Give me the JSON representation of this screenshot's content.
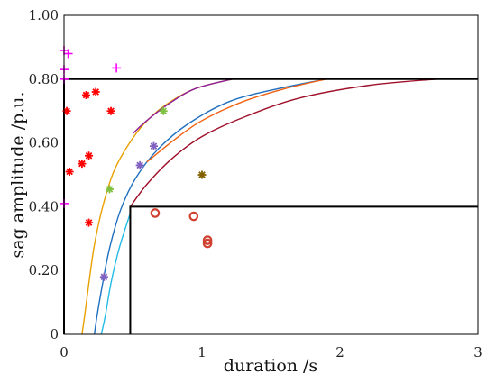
{
  "chart_data": {
    "type": "scatter",
    "title": "",
    "xlabel": "duration /s",
    "ylabel": "sag amplitude /p.u.",
    "xlim": [
      0,
      3
    ],
    "ylim": [
      0,
      1
    ],
    "xticks": [
      "0",
      "1",
      "2",
      "3"
    ],
    "yticks": [
      "0",
      "0.20",
      "0.40",
      "0.60",
      "0.80",
      "1.00"
    ],
    "grid": false,
    "legend": "none",
    "regions": [
      {
        "points": [
          [
            0,
            0.8
          ],
          [
            3,
            0.8
          ]
        ]
      },
      {
        "points": [
          [
            0,
            0
          ],
          [
            0,
            0.8
          ]
        ]
      },
      {
        "points": [
          [
            0.48,
            0
          ],
          [
            0.48,
            0.4
          ],
          [
            3,
            0.4
          ]
        ]
      }
    ],
    "curves": [
      {
        "color": "#e8a000",
        "points": [
          [
            0.13,
            0
          ],
          [
            0.15,
            0.06
          ],
          [
            0.18,
            0.16
          ],
          [
            0.22,
            0.28
          ],
          [
            0.28,
            0.4
          ],
          [
            0.36,
            0.51
          ],
          [
            0.46,
            0.59
          ],
          [
            0.58,
            0.66
          ],
          [
            0.74,
            0.72
          ],
          [
            0.95,
            0.77
          ],
          [
            1.22,
            0.8
          ]
        ]
      },
      {
        "color": "#8e1f9e",
        "points": [
          [
            0.5,
            0.63
          ],
          [
            0.6,
            0.67
          ],
          [
            0.75,
            0.72
          ],
          [
            0.95,
            0.77
          ],
          [
            1.22,
            0.8
          ]
        ]
      },
      {
        "color": "#1f6fbf",
        "points": [
          [
            0.22,
            0
          ],
          [
            0.24,
            0.06
          ],
          [
            0.28,
            0.16
          ],
          [
            0.33,
            0.27
          ],
          [
            0.41,
            0.39
          ],
          [
            0.52,
            0.49
          ],
          [
            0.68,
            0.58
          ],
          [
            0.9,
            0.66
          ],
          [
            1.2,
            0.73
          ],
          [
            1.55,
            0.77
          ],
          [
            1.9,
            0.8
          ]
        ]
      },
      {
        "color": "#f06010",
        "points": [
          [
            0.6,
            0.54
          ],
          [
            0.8,
            0.61
          ],
          [
            1.0,
            0.67
          ],
          [
            1.3,
            0.73
          ],
          [
            1.6,
            0.77
          ],
          [
            1.9,
            0.8
          ]
        ]
      },
      {
        "color": "#22bbe6",
        "points": [
          [
            0.27,
            0
          ],
          [
            0.3,
            0.06
          ],
          [
            0.34,
            0.16
          ],
          [
            0.4,
            0.27
          ],
          [
            0.48,
            0.38
          ]
        ]
      },
      {
        "color": "#a0102a",
        "points": [
          [
            0.48,
            0.4
          ],
          [
            0.6,
            0.47
          ],
          [
            0.78,
            0.55
          ],
          [
            1.0,
            0.62
          ],
          [
            1.3,
            0.68
          ],
          [
            1.7,
            0.74
          ],
          [
            2.2,
            0.78
          ],
          [
            2.7,
            0.8
          ]
        ]
      }
    ],
    "series": [
      {
        "marker": "+",
        "color": "#ff00ff",
        "points": [
          [
            0.0,
            0.89
          ],
          [
            0.03,
            0.88
          ],
          [
            0.0,
            0.83
          ],
          [
            0.38,
            0.835
          ],
          [
            0.0,
            0.8
          ],
          [
            0.0,
            0.41
          ]
        ]
      },
      {
        "marker": "*",
        "color": "#ff0000",
        "points": [
          [
            0.02,
            0.7
          ],
          [
            0.16,
            0.75
          ],
          [
            0.23,
            0.76
          ],
          [
            0.34,
            0.7
          ],
          [
            0.18,
            0.56
          ],
          [
            0.13,
            0.535
          ],
          [
            0.04,
            0.51
          ],
          [
            0.18,
            0.35
          ]
        ]
      },
      {
        "marker": "*",
        "color": "#80c040",
        "points": [
          [
            0.72,
            0.7
          ],
          [
            0.33,
            0.455
          ]
        ]
      },
      {
        "marker": "*",
        "color": "#8060c0",
        "points": [
          [
            0.65,
            0.59
          ],
          [
            0.55,
            0.53
          ],
          [
            0.29,
            0.18
          ]
        ]
      },
      {
        "marker": "*",
        "color": "#806000",
        "points": [
          [
            1.0,
            0.5
          ]
        ]
      },
      {
        "marker": "o",
        "color": "#d04030",
        "points": [
          [
            0.66,
            0.38
          ],
          [
            0.94,
            0.37
          ],
          [
            1.04,
            0.295
          ],
          [
            1.04,
            0.285
          ]
        ]
      }
    ]
  }
}
